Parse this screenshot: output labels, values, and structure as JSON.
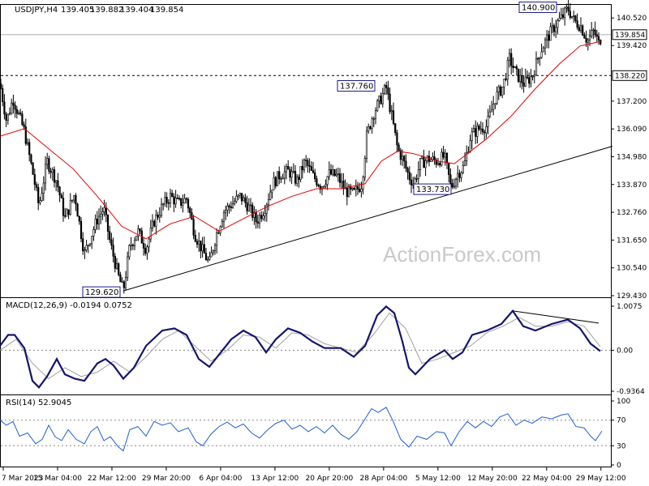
{
  "chart_data": {
    "type": "candlestick",
    "symbol": "USDJPY,H4",
    "ohlc": [
      "139.405",
      "139.882",
      "139.404",
      "139.854"
    ],
    "watermark": "ActionForex.com",
    "price_axis": {
      "range": [
        129.43,
        140.98
      ],
      "ticks": [
        "140.520",
        "139.420",
        "137.200",
        "136.090",
        "134.980",
        "133.870",
        "132.760",
        "131.650",
        "130.540",
        "129.430"
      ],
      "current_price": 139.854,
      "current_price_label": "139.854",
      "level": 138.22,
      "level_label": "138.220"
    },
    "time_axis": {
      "ticks": [
        "7 Mar 2023",
        "15 Mar 04:00",
        "22 Mar 12:00",
        "29 Mar 20:00",
        "6 Apr 04:00",
        "13 Apr 12:00",
        "20 Apr 20:00",
        "28 Apr 04:00",
        "5 May 12:00",
        "12 May 20:00",
        "22 May 04:00",
        "29 May 12:00"
      ]
    },
    "price_path": [
      [
        0,
        137.9
      ],
      [
        8,
        136.4
      ],
      [
        16,
        137.3
      ],
      [
        30,
        136.0
      ],
      [
        40,
        134.4
      ],
      [
        48,
        133.0
      ],
      [
        58,
        134.8
      ],
      [
        70,
        134.0
      ],
      [
        80,
        132.5
      ],
      [
        92,
        133.5
      ],
      [
        104,
        131.1
      ],
      [
        112,
        131.8
      ],
      [
        120,
        132.5
      ],
      [
        128,
        132.9
      ],
      [
        136,
        131.5
      ],
      [
        146,
        130.2
      ],
      [
        152,
        129.62
      ],
      [
        160,
        131.4
      ],
      [
        170,
        132.0
      ],
      [
        180,
        131.3
      ],
      [
        190,
        132.4
      ],
      [
        200,
        133.0
      ],
      [
        210,
        133.4
      ],
      [
        220,
        133.1
      ],
      [
        230,
        133.3
      ],
      [
        240,
        131.9
      ],
      [
        250,
        131.2
      ],
      [
        258,
        130.7
      ],
      [
        266,
        131.8
      ],
      [
        276,
        132.8
      ],
      [
        286,
        133.1
      ],
      [
        296,
        133.4
      ],
      [
        306,
        133.0
      ],
      [
        316,
        132.4
      ],
      [
        326,
        132.9
      ],
      [
        336,
        133.9
      ],
      [
        346,
        134.3
      ],
      [
        356,
        134.4
      ],
      [
        366,
        134.0
      ],
      [
        376,
        134.8
      ],
      [
        386,
        134.2
      ],
      [
        396,
        133.8
      ],
      [
        406,
        134.3
      ],
      [
        416,
        134.2
      ],
      [
        426,
        133.6
      ],
      [
        436,
        133.5
      ],
      [
        446,
        133.9
      ],
      [
        452,
        135.8
      ],
      [
        460,
        136.7
      ],
      [
        468,
        137.2
      ],
      [
        476,
        137.76
      ],
      [
        484,
        136.4
      ],
      [
        490,
        135.3
      ],
      [
        496,
        134.9
      ],
      [
        504,
        134.2
      ],
      [
        510,
        133.9
      ],
      [
        518,
        134.7
      ],
      [
        528,
        134.9
      ],
      [
        538,
        134.8
      ],
      [
        548,
        135.0
      ],
      [
        556,
        133.73
      ],
      [
        564,
        134.3
      ],
      [
        572,
        134.6
      ],
      [
        580,
        135.8
      ],
      [
        590,
        136.1
      ],
      [
        600,
        136.2
      ],
      [
        610,
        137.3
      ],
      [
        620,
        137.8
      ],
      [
        628,
        138.9
      ],
      [
        636,
        138.3
      ],
      [
        646,
        137.9
      ],
      [
        656,
        138.2
      ],
      [
        666,
        139.2
      ],
      [
        676,
        139.8
      ],
      [
        686,
        140.3
      ],
      [
        694,
        140.6
      ],
      [
        700,
        140.9
      ],
      [
        708,
        140.4
      ],
      [
        716,
        140.2
      ],
      [
        724,
        139.6
      ],
      [
        732,
        140.0
      ],
      [
        738,
        139.5
      ],
      [
        742,
        139.854
      ]
    ],
    "moving_average_path": [
      [
        0,
        135.8
      ],
      [
        30,
        136.1
      ],
      [
        60,
        135.3
      ],
      [
        90,
        134.5
      ],
      [
        120,
        133.4
      ],
      [
        150,
        132.2
      ],
      [
        180,
        131.7
      ],
      [
        210,
        132.3
      ],
      [
        240,
        132.6
      ],
      [
        270,
        132.0
      ],
      [
        300,
        132.5
      ],
      [
        330,
        133.0
      ],
      [
        360,
        133.4
      ],
      [
        390,
        133.7
      ],
      [
        420,
        133.7
      ],
      [
        450,
        133.9
      ],
      [
        470,
        134.8
      ],
      [
        490,
        135.2
      ],
      [
        510,
        135.1
      ],
      [
        540,
        134.8
      ],
      [
        560,
        134.7
      ],
      [
        580,
        135.2
      ],
      [
        600,
        135.7
      ],
      [
        630,
        136.6
      ],
      [
        660,
        137.7
      ],
      [
        690,
        138.7
      ],
      [
        715,
        139.4
      ],
      [
        742,
        139.6
      ]
    ],
    "trendline": {
      "from": [
        152,
        129.62
      ],
      "to": [
        755,
        135.4
      ]
    },
    "annotations": [
      {
        "label": "140.900",
        "x": 700,
        "price": 140.9
      },
      {
        "label": "137.760",
        "x": 476,
        "price": 137.76
      },
      {
        "label": "133.730",
        "x": 556,
        "price": 133.73
      },
      {
        "label": "129.620",
        "x": 152,
        "price": 129.62
      }
    ],
    "macd": {
      "title": "MACD(12,26,9) -0.0194 0.0752",
      "ticks": [
        "1.0075",
        "0.00",
        "-0.9364"
      ],
      "range": [
        -0.9364,
        1.0075
      ],
      "macd_path": [
        [
          0,
          0.1
        ],
        [
          10,
          0.35
        ],
        [
          18,
          0.35
        ],
        [
          30,
          0.05
        ],
        [
          40,
          -0.7
        ],
        [
          48,
          -0.85
        ],
        [
          58,
          -0.6
        ],
        [
          70,
          -0.2
        ],
        [
          80,
          -0.55
        ],
        [
          92,
          -0.65
        ],
        [
          104,
          -0.7
        ],
        [
          120,
          -0.3
        ],
        [
          130,
          -0.2
        ],
        [
          140,
          -0.35
        ],
        [
          152,
          -0.65
        ],
        [
          165,
          -0.4
        ],
        [
          180,
          0.1
        ],
        [
          200,
          0.45
        ],
        [
          215,
          0.5
        ],
        [
          230,
          0.35
        ],
        [
          245,
          -0.2
        ],
        [
          258,
          -0.38
        ],
        [
          270,
          -0.1
        ],
        [
          285,
          0.25
        ],
        [
          300,
          0.45
        ],
        [
          315,
          0.3
        ],
        [
          328,
          -0.05
        ],
        [
          340,
          0.25
        ],
        [
          355,
          0.5
        ],
        [
          370,
          0.4
        ],
        [
          385,
          0.2
        ],
        [
          400,
          0.05
        ],
        [
          420,
          0.05
        ],
        [
          436,
          -0.15
        ],
        [
          450,
          0.1
        ],
        [
          465,
          0.8
        ],
        [
          476,
          1.0
        ],
        [
          486,
          0.85
        ],
        [
          496,
          0.2
        ],
        [
          504,
          -0.4
        ],
        [
          512,
          -0.55
        ],
        [
          530,
          -0.2
        ],
        [
          548,
          0.0
        ],
        [
          558,
          -0.2
        ],
        [
          570,
          -0.05
        ],
        [
          582,
          0.35
        ],
        [
          600,
          0.45
        ],
        [
          618,
          0.6
        ],
        [
          632,
          0.9
        ],
        [
          645,
          0.55
        ],
        [
          660,
          0.45
        ],
        [
          680,
          0.6
        ],
        [
          700,
          0.7
        ],
        [
          715,
          0.5
        ],
        [
          728,
          0.15
        ],
        [
          740,
          -0.02
        ]
      ],
      "signal_path": [
        [
          0,
          0.0
        ],
        [
          20,
          0.25
        ],
        [
          40,
          -0.3
        ],
        [
          60,
          -0.65
        ],
        [
          80,
          -0.4
        ],
        [
          100,
          -0.6
        ],
        [
          120,
          -0.5
        ],
        [
          140,
          -0.25
        ],
        [
          160,
          -0.5
        ],
        [
          180,
          -0.15
        ],
        [
          200,
          0.25
        ],
        [
          220,
          0.45
        ],
        [
          240,
          0.1
        ],
        [
          260,
          -0.25
        ],
        [
          280,
          0.0
        ],
        [
          300,
          0.35
        ],
        [
          320,
          0.3
        ],
        [
          340,
          0.05
        ],
        [
          360,
          0.4
        ],
        [
          380,
          0.35
        ],
        [
          400,
          0.15
        ],
        [
          420,
          0.05
        ],
        [
          440,
          -0.05
        ],
        [
          460,
          0.35
        ],
        [
          480,
          0.85
        ],
        [
          500,
          0.5
        ],
        [
          520,
          -0.3
        ],
        [
          540,
          -0.2
        ],
        [
          560,
          -0.05
        ],
        [
          580,
          0.1
        ],
        [
          600,
          0.4
        ],
        [
          620,
          0.55
        ],
        [
          640,
          0.75
        ],
        [
          660,
          0.55
        ],
        [
          680,
          0.55
        ],
        [
          700,
          0.65
        ],
        [
          720,
          0.55
        ],
        [
          740,
          0.08
        ]
      ],
      "divergence_line": {
        "from": [
          632,
          0.9
        ],
        "to": [
          738,
          0.62
        ]
      }
    },
    "rsi": {
      "title": "RSI(14) 52.9045",
      "ticks": [
        "100",
        "70",
        "30",
        "0"
      ],
      "range": [
        0,
        100
      ],
      "levels": [
        70,
        30
      ],
      "path": [
        [
          0,
          70
        ],
        [
          8,
          62
        ],
        [
          16,
          68
        ],
        [
          24,
          45
        ],
        [
          34,
          50
        ],
        [
          44,
          33
        ],
        [
          52,
          40
        ],
        [
          60,
          62
        ],
        [
          68,
          44
        ],
        [
          76,
          38
        ],
        [
          84,
          55
        ],
        [
          94,
          40
        ],
        [
          104,
          33
        ],
        [
          112,
          52
        ],
        [
          120,
          60
        ],
        [
          128,
          38
        ],
        [
          136,
          44
        ],
        [
          146,
          28
        ],
        [
          152,
          22
        ],
        [
          160,
          55
        ],
        [
          170,
          60
        ],
        [
          180,
          45
        ],
        [
          190,
          68
        ],
        [
          200,
          62
        ],
        [
          210,
          66
        ],
        [
          220,
          52
        ],
        [
          232,
          58
        ],
        [
          242,
          36
        ],
        [
          250,
          30
        ],
        [
          260,
          48
        ],
        [
          270,
          60
        ],
        [
          280,
          67
        ],
        [
          290,
          58
        ],
        [
          300,
          64
        ],
        [
          310,
          50
        ],
        [
          320,
          42
        ],
        [
          330,
          55
        ],
        [
          340,
          65
        ],
        [
          350,
          70
        ],
        [
          360,
          56
        ],
        [
          370,
          62
        ],
        [
          380,
          52
        ],
        [
          390,
          60
        ],
        [
          400,
          50
        ],
        [
          410,
          62
        ],
        [
          420,
          48
        ],
        [
          430,
          40
        ],
        [
          440,
          52
        ],
        [
          450,
          72
        ],
        [
          458,
          88
        ],
        [
          466,
          82
        ],
        [
          476,
          90
        ],
        [
          484,
          70
        ],
        [
          494,
          40
        ],
        [
          504,
          28
        ],
        [
          514,
          45
        ],
        [
          526,
          40
        ],
        [
          538,
          52
        ],
        [
          548,
          50
        ],
        [
          556,
          30
        ],
        [
          566,
          52
        ],
        [
          576,
          68
        ],
        [
          586,
          58
        ],
        [
          596,
          68
        ],
        [
          606,
          60
        ],
        [
          616,
          75
        ],
        [
          626,
          80
        ],
        [
          636,
          62
        ],
        [
          646,
          70
        ],
        [
          656,
          65
        ],
        [
          668,
          75
        ],
        [
          680,
          72
        ],
        [
          692,
          78
        ],
        [
          700,
          80
        ],
        [
          710,
          60
        ],
        [
          720,
          58
        ],
        [
          728,
          45
        ],
        [
          734,
          38
        ],
        [
          742,
          53
        ]
      ]
    }
  }
}
